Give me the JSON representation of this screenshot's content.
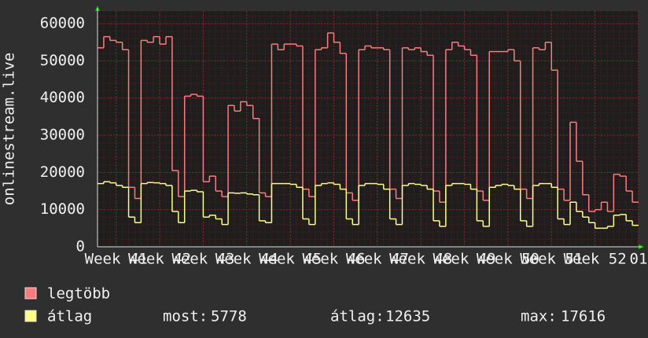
{
  "chart_data": {
    "type": "step-line",
    "y_label": "onlinestream.live",
    "ylim": [
      0,
      63400
    ],
    "yticks": [
      0,
      10000,
      20000,
      30000,
      40000,
      50000,
      60000
    ],
    "xlim": [
      0,
      87
    ],
    "xticks": [
      {
        "value": 3,
        "label": "Week 41"
      },
      {
        "value": 10,
        "label": "Week 42"
      },
      {
        "value": 17,
        "label": "Week 43"
      },
      {
        "value": 24,
        "label": "Week 44"
      },
      {
        "value": 31,
        "label": "Week 45"
      },
      {
        "value": 38,
        "label": "Week 46"
      },
      {
        "value": 45,
        "label": "Week 47"
      },
      {
        "value": 52,
        "label": "Week 48"
      },
      {
        "value": 59,
        "label": "Week 49"
      },
      {
        "value": 66,
        "label": "Week 50"
      },
      {
        "value": 73,
        "label": "Week 51"
      },
      {
        "value": 80,
        "label": "Week 52"
      },
      {
        "value": 87,
        "label": "01"
      }
    ],
    "grid": true,
    "series": [
      {
        "name": "legtöbb",
        "color": "#ff7b7b",
        "values": [
          53500,
          56500,
          55500,
          55000,
          53000,
          16000,
          13000,
          55500,
          55000,
          56500,
          54500,
          56500,
          20500,
          13500,
          40500,
          41000,
          40500,
          17500,
          19000,
          15000,
          13500,
          38000,
          36500,
          39000,
          38000,
          34500,
          14500,
          13500,
          54500,
          53000,
          54500,
          54500,
          54000,
          15500,
          13500,
          53000,
          53500,
          57500,
          55000,
          52000,
          14500,
          12500,
          53000,
          54000,
          53500,
          53500,
          53000,
          15500,
          13000,
          53500,
          53000,
          53500,
          52500,
          51500,
          15000,
          12000,
          53000,
          55000,
          54000,
          53000,
          51500,
          15000,
          12500,
          52500,
          52500,
          52500,
          53000,
          50000,
          15500,
          13000,
          53500,
          53000,
          55000,
          47500,
          15500,
          12500,
          33500,
          23000,
          14000,
          9500,
          10000,
          12000,
          9500,
          19500,
          19000,
          15000,
          12000
        ]
      },
      {
        "name": "átlag",
        "color": "#ffff80",
        "values": [
          17000,
          17500,
          17200,
          16500,
          16000,
          8000,
          6500,
          17000,
          17300,
          17200,
          17000,
          16500,
          9500,
          6500,
          15000,
          15200,
          14800,
          8000,
          8500,
          7500,
          6000,
          14500,
          14400,
          14500,
          14200,
          14000,
          7000,
          6500,
          17000,
          17000,
          17000,
          16800,
          16000,
          7500,
          6000,
          16500,
          17000,
          17200,
          16800,
          15500,
          7500,
          6000,
          16500,
          17000,
          17000,
          16800,
          15500,
          7500,
          6000,
          16500,
          17000,
          16800,
          16500,
          15500,
          7000,
          5500,
          16500,
          17000,
          17000,
          16800,
          15500,
          7000,
          5500,
          16000,
          16500,
          16800,
          16500,
          15500,
          7000,
          5500,
          16500,
          17000,
          17000,
          16000,
          7500,
          6000,
          12000,
          9500,
          8000,
          6500,
          5000,
          5000,
          5500,
          8500,
          8700,
          7000,
          5778
        ]
      }
    ],
    "stats": [
      {
        "label": "most:",
        "value": 5778
      },
      {
        "label": "átlag:",
        "value": 12635
      },
      {
        "label": "max:",
        "value": 17616
      }
    ]
  }
}
